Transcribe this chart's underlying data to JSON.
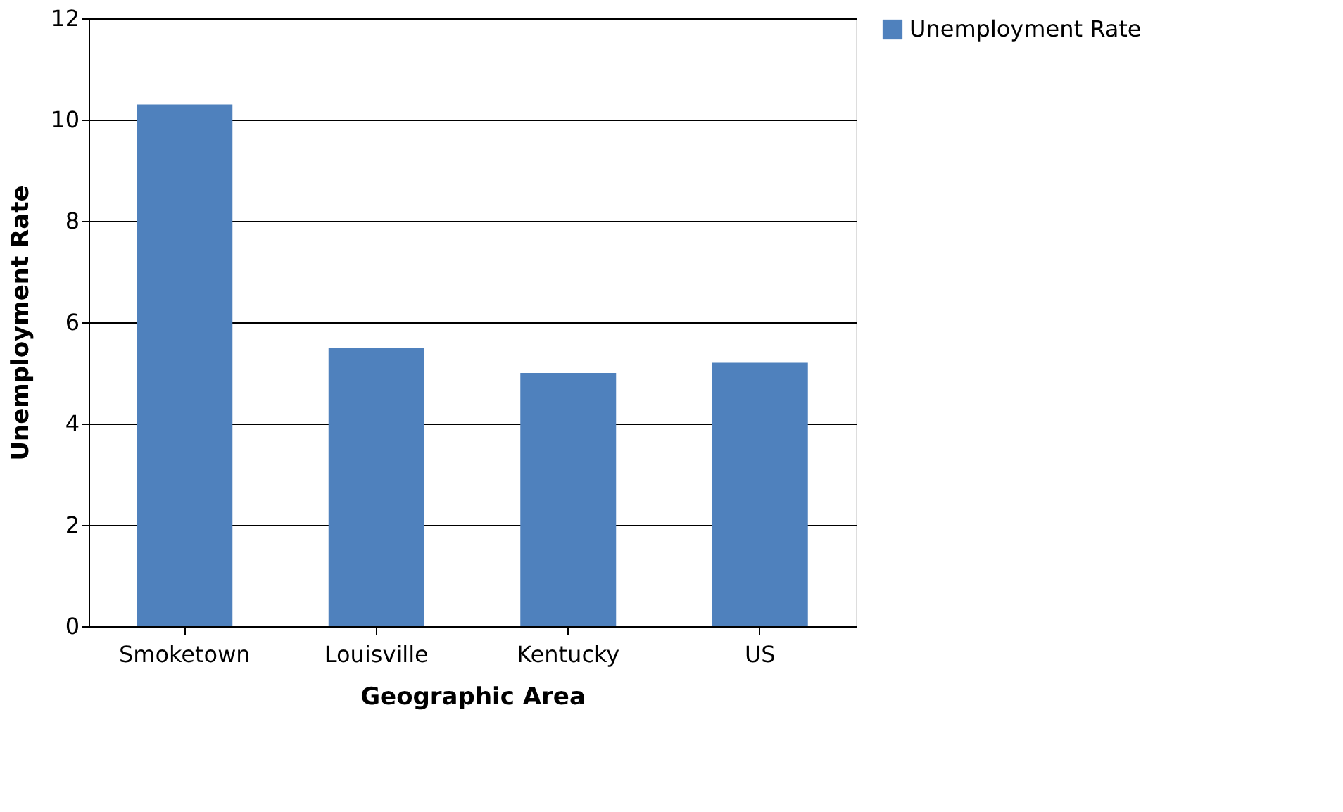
{
  "chart_data": {
    "type": "bar",
    "xlabel": "Geographic Area",
    "ylabel": "Unemployment Rate",
    "categories": [
      "Smoketown",
      "Louisville",
      "Kentucky",
      "US"
    ],
    "series": [
      {
        "name": "Unemployment Rate",
        "color": "#4f81bd",
        "values": [
          10.3,
          5.5,
          5.0,
          5.2
        ]
      }
    ],
    "ylim": [
      0,
      12
    ],
    "yticks": [
      0,
      2,
      4,
      6,
      8,
      10,
      12
    ],
    "grid": "y",
    "legend": "right"
  }
}
